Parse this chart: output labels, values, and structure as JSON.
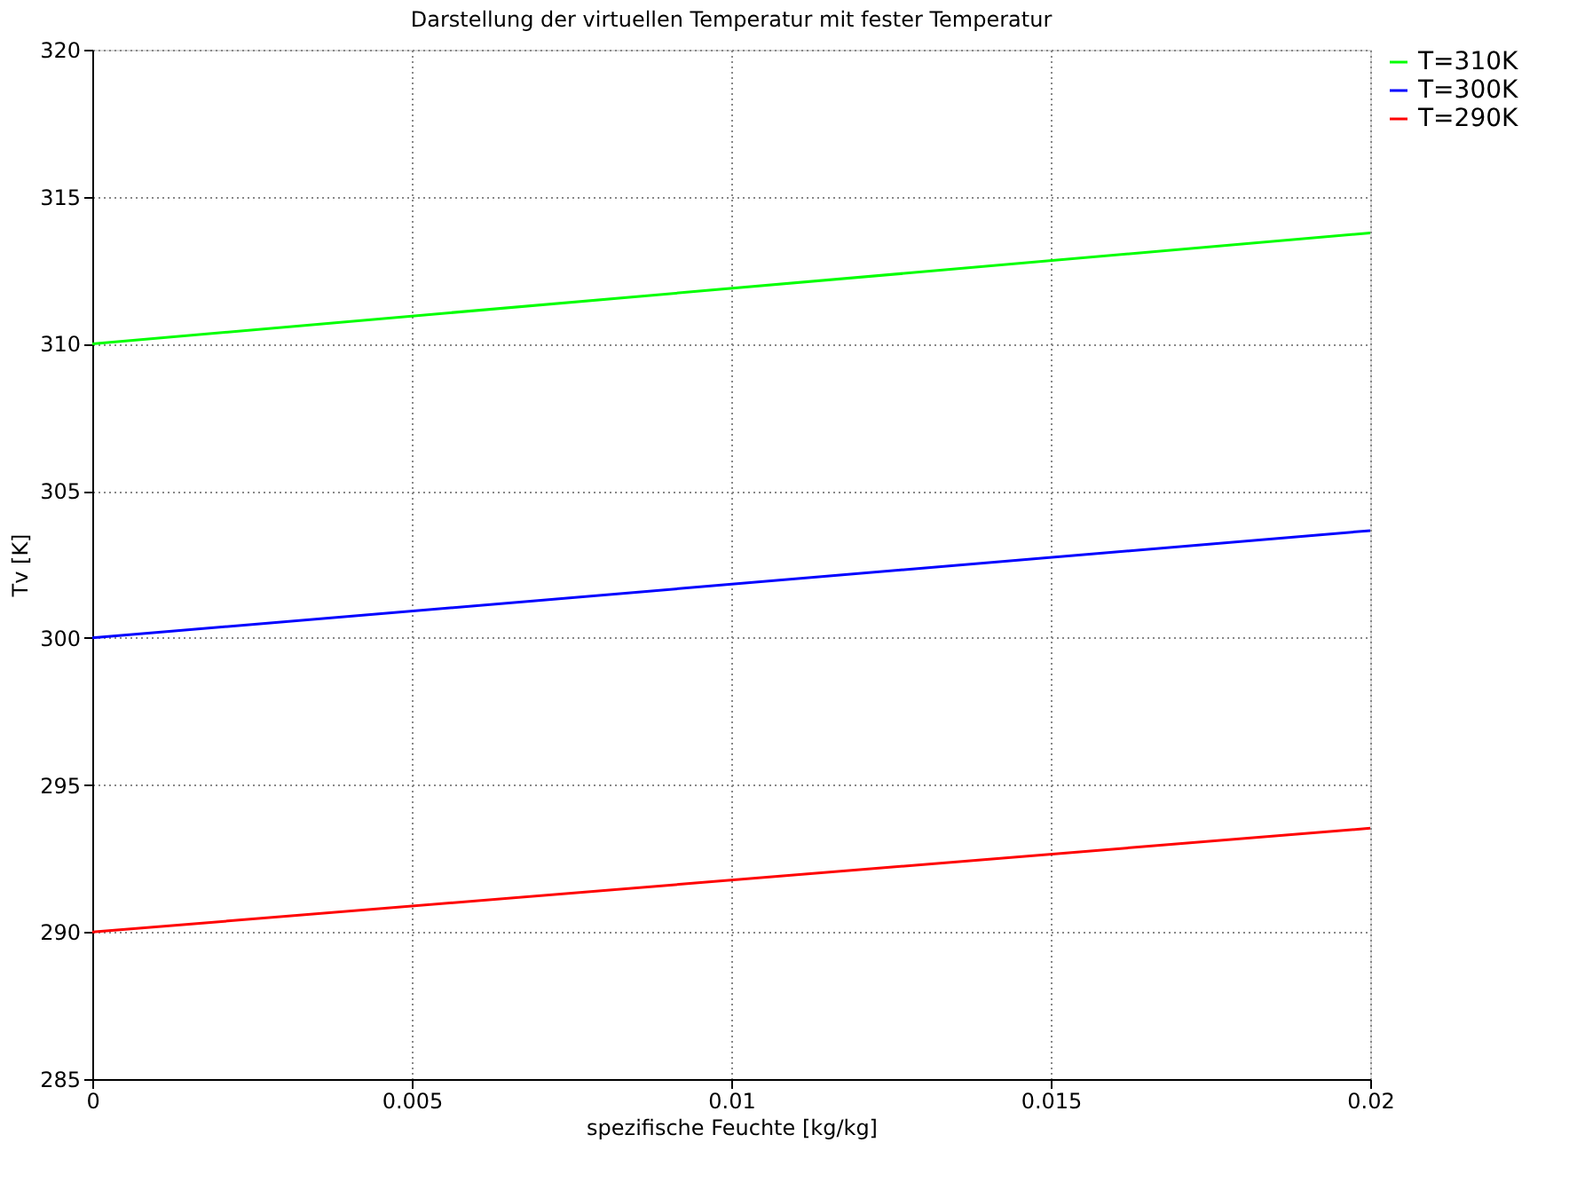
{
  "chart_data": {
    "type": "line",
    "title": "Darstellung der virtuellen Temperatur mit fester Temperatur",
    "xlabel": "spezifische Feuchte [kg/kg]",
    "ylabel": "Tv [K]",
    "x": [
      0,
      0.02
    ],
    "series": [
      {
        "name": "T=310K",
        "color": "#00ff00",
        "values": [
          310,
          313.77
        ]
      },
      {
        "name": "T=300K",
        "color": "#0000ff",
        "values": [
          300,
          303.65
        ]
      },
      {
        "name": "T=290K",
        "color": "#ff0000",
        "values": [
          290,
          293.53
        ]
      }
    ],
    "xlim": [
      0,
      0.02
    ],
    "xticks": [
      0,
      0.005,
      0.01,
      0.015,
      0.02
    ],
    "ylim": [
      285,
      320
    ],
    "yticks": [
      285,
      290,
      295,
      300,
      305,
      310,
      315,
      320
    ],
    "grid": true,
    "legend": "top right",
    "marker": "none",
    "line_style": "solid"
  }
}
